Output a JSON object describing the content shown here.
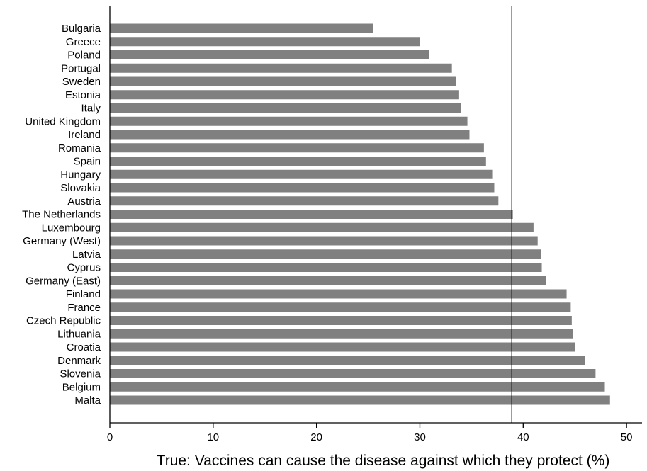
{
  "chart_data": {
    "type": "bar",
    "orientation": "horizontal",
    "categories": [
      "Bulgaria",
      "Greece",
      "Poland",
      "Portugal",
      "Sweden",
      "Estonia",
      "Italy",
      "United Kingdom",
      "Ireland",
      "Romania",
      "Spain",
      "Hungary",
      "Slovakia",
      "Austria",
      "The Netherlands",
      "Luxembourg",
      "Germany (West)",
      "Latvia",
      "Cyprus",
      "Germany (East)",
      "Finland",
      "France",
      "Czech Republic",
      "Lithuania",
      "Croatia",
      "Denmark",
      "Slovenia",
      "Belgium",
      "Malta"
    ],
    "values": [
      25.5,
      30.0,
      30.9,
      33.1,
      33.5,
      33.8,
      34.0,
      34.6,
      34.8,
      36.2,
      36.4,
      37.0,
      37.2,
      37.6,
      39.0,
      41.0,
      41.4,
      41.7,
      41.8,
      42.2,
      44.2,
      44.6,
      44.7,
      44.8,
      45.0,
      46.0,
      47.0,
      47.9,
      48.4
    ],
    "reference_line": 38.9,
    "xlim": [
      0,
      51.5
    ],
    "xticks": [
      0,
      10,
      20,
      30,
      40,
      50
    ],
    "xlabel": "True: Vaccines can cause the disease against which they protect (%)",
    "title": "",
    "grid": false,
    "legend": "none",
    "colors": {
      "bar": "#808080",
      "axis": "#000000",
      "reference_line": "#000000"
    }
  }
}
